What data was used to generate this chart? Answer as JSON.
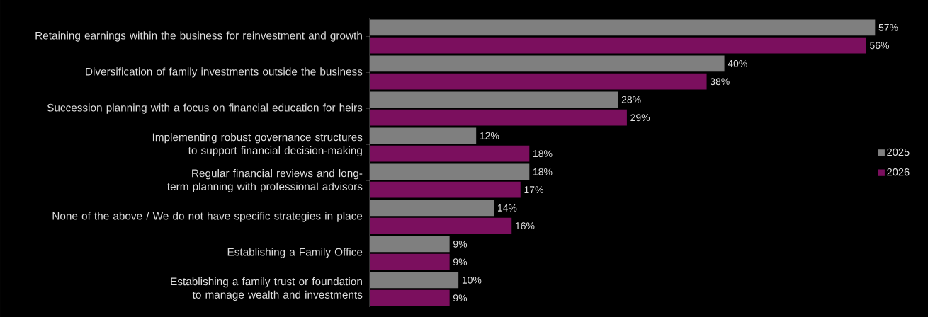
{
  "chart_data": {
    "type": "bar",
    "orientation": "horizontal",
    "legend": "right",
    "tick_labels": "y",
    "categories": [
      "Retaining earnings within the business for reinvestment and growth",
      "Diversification of family investments outside the business",
      "Succession planning with a focus on financial education for heirs",
      "Implementing robust governance structures to support financial decision-making",
      "Regular financial reviews and long-term planning with professional advisors",
      "None of the above / We do not have specific strategies in place",
      "Establishing a Family Office",
      "Establishing a family trust or foundation to manage wealth and investments"
    ],
    "series": [
      {
        "name": "2025",
        "color": "#7f7f7f",
        "values": [
          57,
          40,
          28,
          12,
          18,
          14,
          9,
          10
        ],
        "value_labels": [
          "57%",
          "40%",
          "28%",
          "12%",
          "18%",
          "14%",
          "9%",
          "10%"
        ]
      },
      {
        "name": "2026",
        "color": "#7b0f5e",
        "values": [
          56,
          38,
          29,
          18,
          17,
          16,
          9,
          9
        ],
        "value_labels": [
          "56%",
          "38%",
          "29%",
          "18%",
          "17%",
          "16%",
          "9%",
          "9%"
        ]
      }
    ]
  }
}
